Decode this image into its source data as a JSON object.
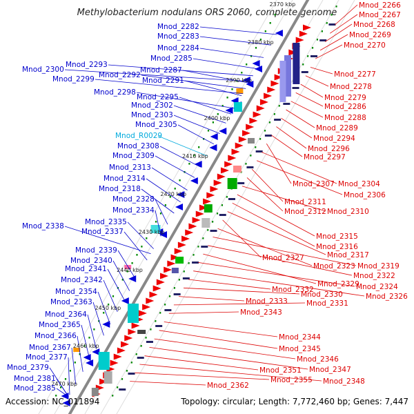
{
  "title": "Methylobacterium nodulans ORS 2060, complete genome",
  "footer": {
    "accession": "Accession: NC_011894",
    "topology": "Topology: circular; Length: 7,772,460 bp; Genes: 7,447"
  },
  "colors": {
    "left_label": "#0000cc",
    "right_label": "#dd0000",
    "rna_label": "#00aadd",
    "axis": "#888888",
    "tick": "#008800"
  },
  "scale_labels": [
    "2370 kbp",
    "2380 kbp",
    "2390 kbp",
    "2400 kbp",
    "2410 kbp",
    "2420 kbp",
    "2430 kbp",
    "2440 kbp",
    "2450 kbp",
    "2460 kbp",
    "2470 kbp"
  ],
  "left_labels": [
    {
      "text": "Mnod_2282",
      "kind": "gene"
    },
    {
      "text": "Mnod_2283",
      "kind": "gene"
    },
    {
      "text": "Mnod_2284",
      "kind": "gene"
    },
    {
      "text": "Mnod_2285",
      "kind": "gene"
    },
    {
      "text": "Mnod_2293",
      "kind": "gene"
    },
    {
      "text": "Mnod_2300",
      "kind": "gene"
    },
    {
      "text": "Mnod_2287",
      "kind": "gene"
    },
    {
      "text": "Mnod_2292",
      "kind": "gene"
    },
    {
      "text": "Mnod_2299",
      "kind": "gene"
    },
    {
      "text": "Mnod_2291",
      "kind": "gene"
    },
    {
      "text": "Mnod_2298",
      "kind": "gene"
    },
    {
      "text": "Mnod_2295",
      "kind": "gene"
    },
    {
      "text": "Mnod_2302",
      "kind": "gene"
    },
    {
      "text": "Mnod_2303",
      "kind": "gene"
    },
    {
      "text": "Mnod_2305",
      "kind": "gene"
    },
    {
      "text": "Mnod_R0029",
      "kind": "rna"
    },
    {
      "text": "Mnod_2308",
      "kind": "gene"
    },
    {
      "text": "Mnod_2309",
      "kind": "gene"
    },
    {
      "text": "Mnod_2313",
      "kind": "gene"
    },
    {
      "text": "Mnod_2314",
      "kind": "gene"
    },
    {
      "text": "Mnod_2318",
      "kind": "gene"
    },
    {
      "text": "Mnod_2328",
      "kind": "gene"
    },
    {
      "text": "Mnod_2334",
      "kind": "gene"
    },
    {
      "text": "Mnod_2335",
      "kind": "gene"
    },
    {
      "text": "Mnod_2338",
      "kind": "gene"
    },
    {
      "text": "Mnod_2337",
      "kind": "gene"
    },
    {
      "text": "Mnod_2339",
      "kind": "gene"
    },
    {
      "text": "Mnod_2340",
      "kind": "gene"
    },
    {
      "text": "Mnod_2341",
      "kind": "gene"
    },
    {
      "text": "Mnod_2342",
      "kind": "gene"
    },
    {
      "text": "Mnod_2354",
      "kind": "gene"
    },
    {
      "text": "Mnod_2363",
      "kind": "gene"
    },
    {
      "text": "Mnod_2364",
      "kind": "gene"
    },
    {
      "text": "Mnod_2365",
      "kind": "gene"
    },
    {
      "text": "Mnod_2366",
      "kind": "gene"
    },
    {
      "text": "Mnod_2367",
      "kind": "gene"
    },
    {
      "text": "Mnod_2377",
      "kind": "gene"
    },
    {
      "text": "Mnod_2379",
      "kind": "gene"
    },
    {
      "text": "Mnod_2381",
      "kind": "gene"
    },
    {
      "text": "Mnod_2385",
      "kind": "gene"
    }
  ],
  "right_labels": [
    "Mnod_2266",
    "Mnod_2267",
    "Mnod_2268",
    "Mnod_2269",
    "Mnod_2270",
    "Mnod_2277",
    "Mnod_2278",
    "Mnod_2279",
    "Mnod_2286",
    "Mnod_2288",
    "Mnod_2289",
    "Mnod_2294",
    "Mnod_2296",
    "Mnod_2297",
    "Mnod_2307",
    "Mnod_2304",
    "Mnod_2306",
    "Mnod_2311",
    "Mnod_2312",
    "Mnod_2310",
    "Mnod_2315",
    "Mnod_2316",
    "Mnod_2317",
    "Mnod_2327",
    "Mnod_2323",
    "Mnod_2319",
    "Mnod_2322",
    "Mnod_2329",
    "Mnod_2324",
    "Mnod_2326",
    "Mnod_2332",
    "Mnod_2330",
    "Mnod_2333",
    "Mnod_2331",
    "Mnod_2343",
    "Mnod_2344",
    "Mnod_2345",
    "Mnod_2346",
    "Mnod_2347",
    "Mnod_2351",
    "Mnod_2348",
    "Mnod_2355",
    "Mnod_2362"
  ]
}
